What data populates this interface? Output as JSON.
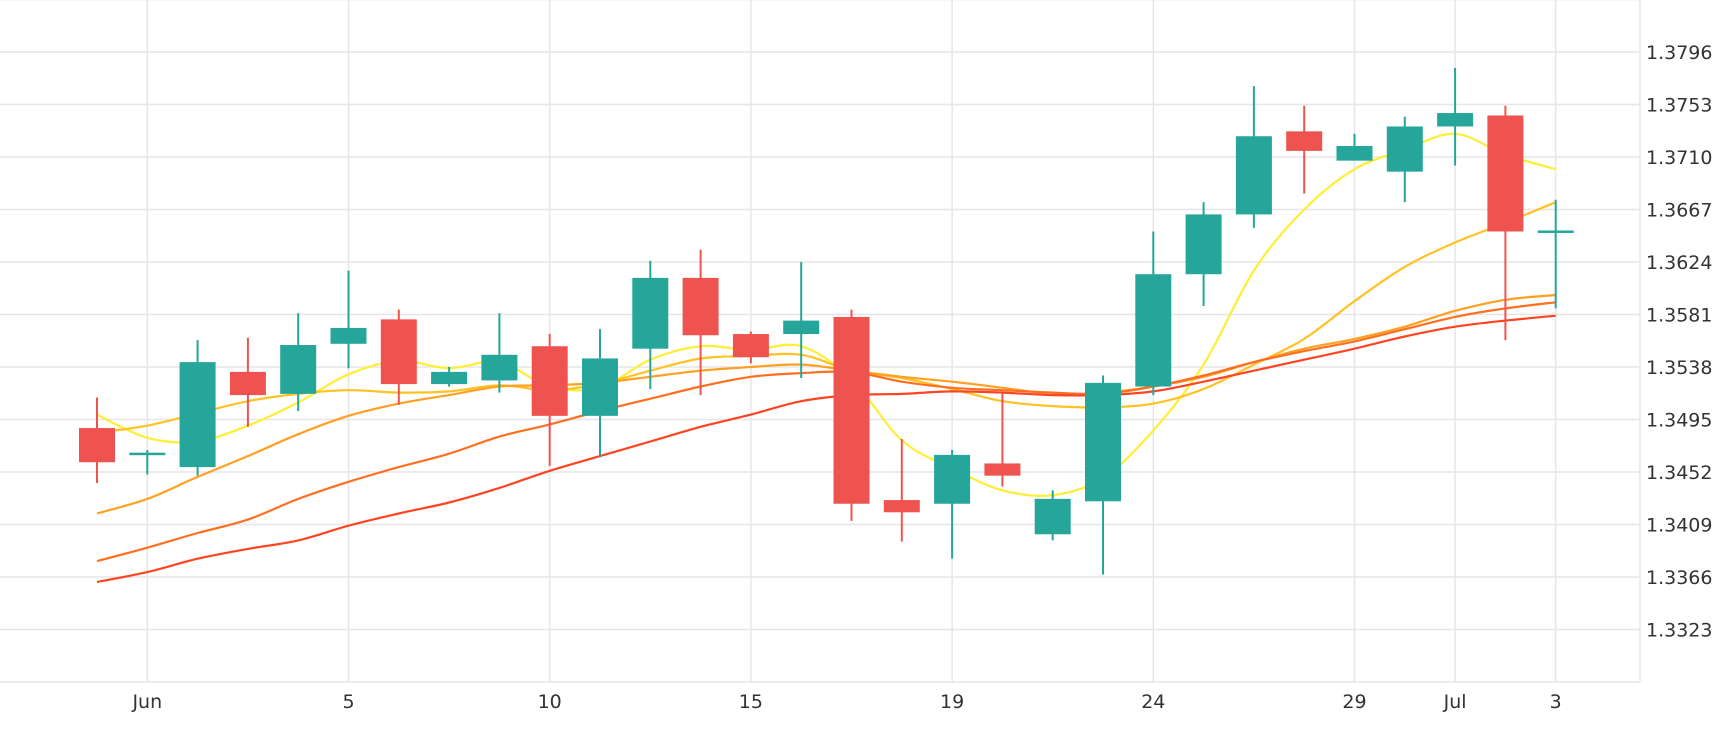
{
  "chart_data": {
    "type": "candlestick",
    "title": "",
    "xlabel": "",
    "ylabel": "",
    "grid": true,
    "legend": "none",
    "ylim": [
      1.328,
      1.3839
    ],
    "y_ticks": [
      "1.3323",
      "1.3366",
      "1.3409",
      "1.3452",
      "1.3495",
      "1.3538",
      "1.3581",
      "1.3624",
      "1.3667",
      "1.3710",
      "1.3753",
      "1.3796"
    ],
    "x_ticks": [
      {
        "label": "Jun",
        "index": 1
      },
      {
        "label": "5",
        "index": 5
      },
      {
        "label": "10",
        "index": 9
      },
      {
        "label": "15",
        "index": 13
      },
      {
        "label": "19",
        "index": 17
      },
      {
        "label": "24",
        "index": 21
      },
      {
        "label": "29",
        "index": 25
      },
      {
        "label": "Jul",
        "index": 27
      },
      {
        "label": "3",
        "index": 29
      }
    ],
    "up_color": "#26a69a",
    "down_color": "#ef5350",
    "candles": [
      {
        "o": 1.3488,
        "h": 1.3513,
        "l": 1.3443,
        "c": 1.346
      },
      {
        "o": 1.3465,
        "h": 1.347,
        "l": 1.345,
        "c": 1.3467
      },
      {
        "o": 1.3456,
        "h": 1.356,
        "l": 1.3449,
        "c": 1.3542
      },
      {
        "o": 1.3534,
        "h": 1.3562,
        "l": 1.3489,
        "c": 1.3515
      },
      {
        "o": 1.3516,
        "h": 1.3582,
        "l": 1.3502,
        "c": 1.3556
      },
      {
        "o": 1.3557,
        "h": 1.3617,
        "l": 1.3537,
        "c": 1.357
      },
      {
        "o": 1.3577,
        "h": 1.3585,
        "l": 1.3507,
        "c": 1.3524
      },
      {
        "o": 1.3524,
        "h": 1.3538,
        "l": 1.3522,
        "c": 1.3534
      },
      {
        "o": 1.3527,
        "h": 1.3582,
        "l": 1.3517,
        "c": 1.3548
      },
      {
        "o": 1.3555,
        "h": 1.3565,
        "l": 1.3457,
        "c": 1.3498
      },
      {
        "o": 1.3498,
        "h": 1.3569,
        "l": 1.3464,
        "c": 1.3545
      },
      {
        "o": 1.3553,
        "h": 1.3625,
        "l": 1.352,
        "c": 1.3611
      },
      {
        "o": 1.3611,
        "h": 1.3634,
        "l": 1.3515,
        "c": 1.3564
      },
      {
        "o": 1.3565,
        "h": 1.3567,
        "l": 1.3541,
        "c": 1.3546
      },
      {
        "o": 1.3565,
        "h": 1.3624,
        "l": 1.3529,
        "c": 1.3576
      },
      {
        "o": 1.3579,
        "h": 1.3585,
        "l": 1.3412,
        "c": 1.3426
      },
      {
        "o": 1.3429,
        "h": 1.3479,
        "l": 1.3395,
        "c": 1.3419
      },
      {
        "o": 1.3426,
        "h": 1.347,
        "l": 1.3381,
        "c": 1.3466
      },
      {
        "o": 1.3459,
        "h": 1.3517,
        "l": 1.344,
        "c": 1.3449
      },
      {
        "o": 1.3401,
        "h": 1.3437,
        "l": 1.3396,
        "c": 1.343
      },
      {
        "o": 1.3428,
        "h": 1.3531,
        "l": 1.3368,
        "c": 1.3525
      },
      {
        "o": 1.3522,
        "h": 1.3649,
        "l": 1.3515,
        "c": 1.3614
      },
      {
        "o": 1.3614,
        "h": 1.3673,
        "l": 1.3588,
        "c": 1.3663
      },
      {
        "o": 1.3663,
        "h": 1.3768,
        "l": 1.3652,
        "c": 1.3727
      },
      {
        "o": 1.3731,
        "h": 1.3752,
        "l": 1.368,
        "c": 1.3715
      },
      {
        "o": 1.3707,
        "h": 1.3729,
        "l": 1.3707,
        "c": 1.3719
      },
      {
        "o": 1.3698,
        "h": 1.3743,
        "l": 1.3673,
        "c": 1.3735
      },
      {
        "o": 1.3735,
        "h": 1.3783,
        "l": 1.3703,
        "c": 1.3746
      },
      {
        "o": 1.3744,
        "h": 1.3752,
        "l": 1.356,
        "c": 1.3649
      },
      {
        "o": 1.3649,
        "h": 1.3675,
        "l": 1.3586,
        "c": 1.3649
      }
    ],
    "moving_averages": [
      {
        "color": "#ffee33",
        "values": [
          1.3499,
          1.348,
          1.3477,
          1.349,
          1.3509,
          1.3532,
          1.3543,
          1.3537,
          1.3542,
          1.3522,
          1.3521,
          1.3544,
          1.3555,
          1.3552,
          1.3555,
          1.3528,
          1.3478,
          1.3455,
          1.3437,
          1.3433,
          1.3447,
          1.3486,
          1.354,
          1.3617,
          1.3667,
          1.37,
          1.3716,
          1.3729,
          1.3712,
          1.37
        ]
      },
      {
        "color": "#ffc222",
        "values": [
          1.3484,
          1.349,
          1.35,
          1.351,
          1.3516,
          1.3519,
          1.3517,
          1.3518,
          1.3523,
          1.3519,
          1.3524,
          1.3535,
          1.3545,
          1.3547,
          1.3548,
          1.3535,
          1.3529,
          1.352,
          1.351,
          1.3506,
          1.3505,
          1.3508,
          1.352,
          1.354,
          1.3561,
          1.3592,
          1.362,
          1.364,
          1.3656,
          1.3673
        ]
      },
      {
        "color": "#ffa022",
        "values": [
          1.3418,
          1.343,
          1.3448,
          1.3465,
          1.3483,
          1.3498,
          1.3508,
          1.3515,
          1.3522,
          1.3523,
          1.3525,
          1.353,
          1.3535,
          1.3538,
          1.354,
          1.3535,
          1.353,
          1.3526,
          1.3521,
          1.3516,
          1.3517,
          1.3522,
          1.353,
          1.3542,
          1.3553,
          1.3561,
          1.3571,
          1.3584,
          1.3593,
          1.3597
        ]
      },
      {
        "color": "#ff6f22",
        "values": [
          1.3379,
          1.339,
          1.3402,
          1.3413,
          1.343,
          1.3444,
          1.3456,
          1.3467,
          1.3481,
          1.3491,
          1.3502,
          1.3512,
          1.3522,
          1.353,
          1.3533,
          1.3534,
          1.3526,
          1.3521,
          1.3519,
          1.3517,
          1.3516,
          1.3522,
          1.3531,
          1.3542,
          1.3551,
          1.3559,
          1.3569,
          1.3579,
          1.3586,
          1.3591
        ]
      },
      {
        "color": "#ff4422",
        "values": [
          1.3362,
          1.337,
          1.3381,
          1.3389,
          1.3396,
          1.3408,
          1.3418,
          1.3427,
          1.3439,
          1.3453,
          1.3465,
          1.3477,
          1.3489,
          1.3499,
          1.351,
          1.3515,
          1.3516,
          1.3518,
          1.3517,
          1.3515,
          1.3515,
          1.3518,
          1.3526,
          1.3535,
          1.3544,
          1.3553,
          1.3563,
          1.3571,
          1.3576,
          1.358
        ]
      }
    ]
  }
}
